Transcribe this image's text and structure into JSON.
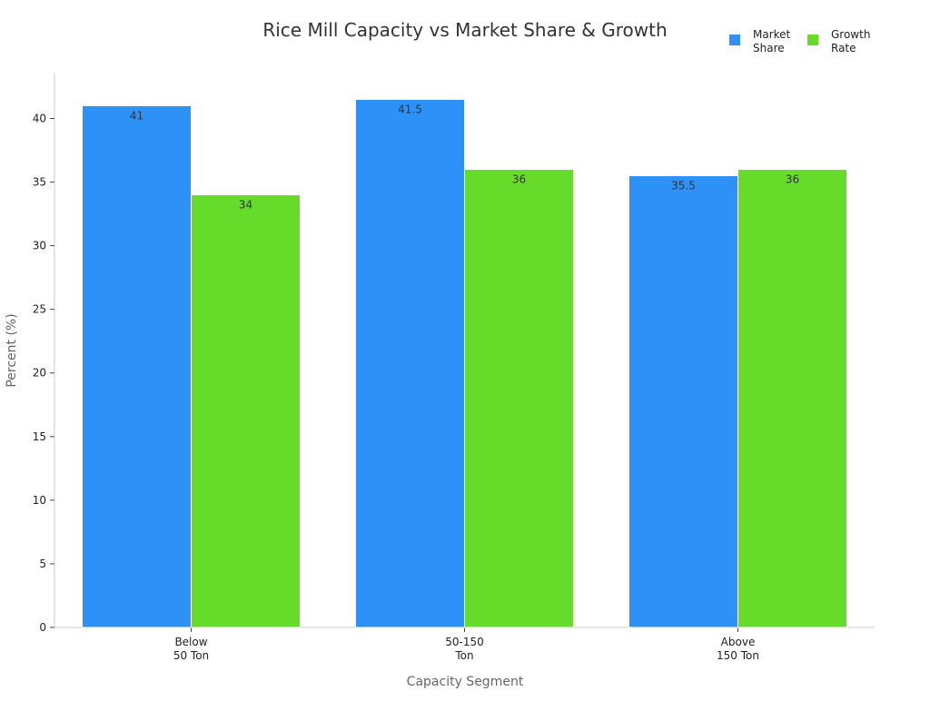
{
  "chart_data": {
    "type": "bar",
    "title": "Rice Mill Capacity vs Market Share & Growth",
    "x_label": "Capacity Segment",
    "y_label": "Percent (%)",
    "categories": [
      "Below\n50 Ton",
      "50-150\nTon",
      "Above\n150 Ton"
    ],
    "series": [
      {
        "name": "Market\nShare",
        "color": "#2e91f8",
        "values": [
          41,
          41.5,
          35.5
        ]
      },
      {
        "name": "Growth\nRate",
        "color": "#66db29",
        "values": [
          34,
          36,
          36
        ]
      }
    ],
    "ylim": [
      0,
      43.6
    ],
    "yticks": [
      0,
      5,
      10,
      15,
      20,
      25,
      30,
      35,
      40
    ],
    "legend": "top-right"
  }
}
